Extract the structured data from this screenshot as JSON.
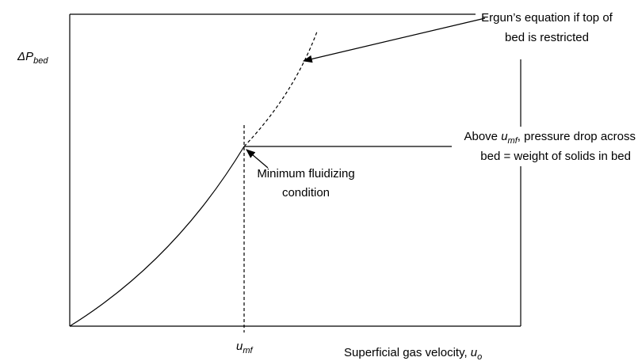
{
  "y_axis_label": {
    "symbol": "ΔP",
    "subscript": "bed"
  },
  "x_marker": {
    "symbol": "u",
    "subscript": "mf"
  },
  "x_axis_label": {
    "text": "Superficial gas velocity, ",
    "symbol": "u",
    "subscript": "o"
  },
  "annotations": [
    {
      "lines": [
        "Ergun’s equation if top of",
        "bed is restricted"
      ]
    },
    {
      "lines": [
        {
          "before": "Above ",
          "symbol": "u",
          "subscript": "mf",
          "after": ", pressure drop across"
        },
        "bed = weight of solids in bed"
      ]
    },
    {
      "lines": [
        "Minimum fluidizing",
        "condition"
      ]
    }
  ]
}
